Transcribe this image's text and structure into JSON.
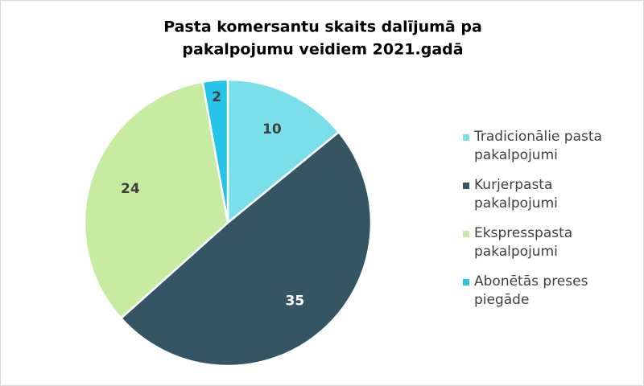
{
  "chart_data": {
    "type": "pie",
    "title": [
      "Pasta komersantu skaits dalījumā pa",
      "pakalpojumu veidiem 2021.gadā"
    ],
    "categories": [
      "Tradicionālie pasta pakalpojumi",
      "Kurjerpasta pakalpojumi",
      "Ekspresspasta pakalpojumi",
      "Abonētās preses piegāde"
    ],
    "values": [
      10,
      35,
      24,
      2
    ],
    "colors": [
      "#7bdfeb",
      "#355565",
      "#c6eba1",
      "#26c4e8"
    ],
    "legend": "right"
  }
}
